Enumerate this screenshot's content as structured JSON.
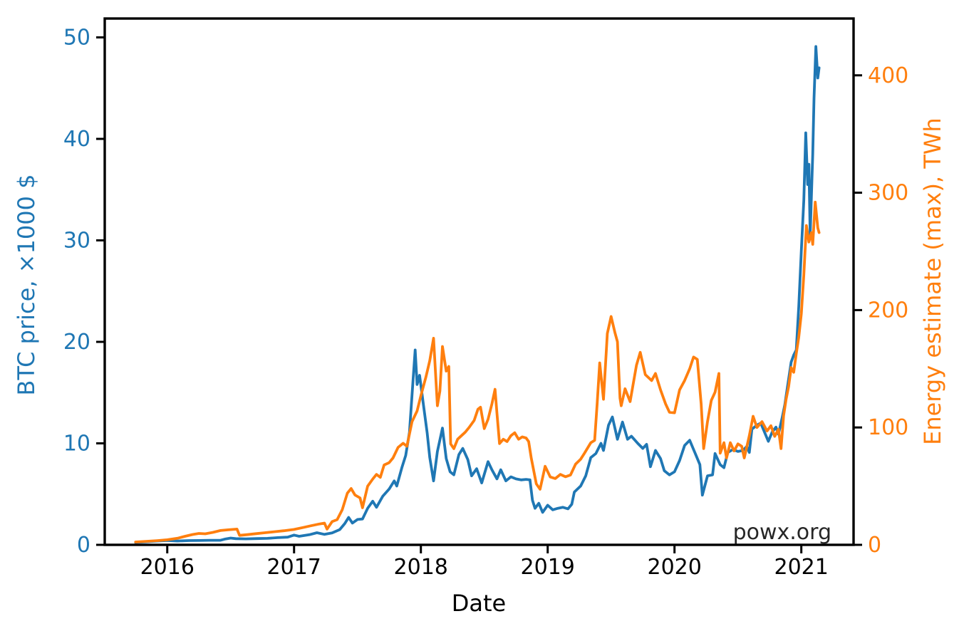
{
  "figure": {
    "watermark": "powx.org"
  },
  "chart_data": {
    "type": "line",
    "title": "",
    "xlabel": "Date",
    "ylabel_left": "BTC price, ×1000 $",
    "ylabel_right": "Energy estimate (max), TWh",
    "grid": false,
    "legend": "none",
    "x_axis": {
      "range": [
        2015.507,
        2021.412
      ],
      "ticks": [
        2016,
        2017,
        2018,
        2019,
        2020,
        2021
      ]
    },
    "y_axis_left": {
      "range": [
        0,
        51.86
      ],
      "ticks": [
        0,
        10,
        20,
        30,
        40,
        50
      ],
      "color": "#1f77b4"
    },
    "y_axis_right": {
      "range": [
        0,
        448.4
      ],
      "ticks": [
        0,
        100,
        200,
        300,
        400
      ],
      "color": "#ff7f0e"
    },
    "series": [
      {
        "name": "BTC price",
        "axis": "left",
        "color": "#1f77b4",
        "units": "×1000 $",
        "points": [
          [
            2015.75,
            0.24
          ],
          [
            2015.83,
            0.3
          ],
          [
            2015.92,
            0.38
          ],
          [
            2016.0,
            0.43
          ],
          [
            2016.08,
            0.38
          ],
          [
            2016.17,
            0.42
          ],
          [
            2016.25,
            0.43
          ],
          [
            2016.33,
            0.45
          ],
          [
            2016.42,
            0.45
          ],
          [
            2016.46,
            0.58
          ],
          [
            2016.5,
            0.67
          ],
          [
            2016.54,
            0.61
          ],
          [
            2016.62,
            0.59
          ],
          [
            2016.71,
            0.62
          ],
          [
            2016.79,
            0.64
          ],
          [
            2016.87,
            0.71
          ],
          [
            2016.95,
            0.76
          ],
          [
            2017.0,
            0.96
          ],
          [
            2017.04,
            0.84
          ],
          [
            2017.12,
            1.0
          ],
          [
            2017.18,
            1.19
          ],
          [
            2017.24,
            1.03
          ],
          [
            2017.3,
            1.18
          ],
          [
            2017.36,
            1.5
          ],
          [
            2017.4,
            2.1
          ],
          [
            2017.43,
            2.7
          ],
          [
            2017.46,
            2.15
          ],
          [
            2017.5,
            2.5
          ],
          [
            2017.54,
            2.55
          ],
          [
            2017.58,
            3.6
          ],
          [
            2017.62,
            4.3
          ],
          [
            2017.65,
            3.7
          ],
          [
            2017.7,
            4.8
          ],
          [
            2017.75,
            5.5
          ],
          [
            2017.79,
            6.3
          ],
          [
            2017.81,
            5.8
          ],
          [
            2017.85,
            7.6
          ],
          [
            2017.88,
            8.8
          ],
          [
            2017.91,
            11.1
          ],
          [
            2017.94,
            16.5
          ],
          [
            2017.955,
            19.2
          ],
          [
            2017.97,
            15.8
          ],
          [
            2017.99,
            16.7
          ],
          [
            2018.02,
            13.8
          ],
          [
            2018.05,
            11.0
          ],
          [
            2018.07,
            8.6
          ],
          [
            2018.1,
            6.3
          ],
          [
            2018.13,
            9.2
          ],
          [
            2018.17,
            11.5
          ],
          [
            2018.2,
            8.5
          ],
          [
            2018.23,
            7.2
          ],
          [
            2018.26,
            6.9
          ],
          [
            2018.3,
            8.9
          ],
          [
            2018.33,
            9.5
          ],
          [
            2018.37,
            8.4
          ],
          [
            2018.4,
            6.8
          ],
          [
            2018.44,
            7.5
          ],
          [
            2018.48,
            6.1
          ],
          [
            2018.53,
            8.2
          ],
          [
            2018.56,
            7.4
          ],
          [
            2018.6,
            6.5
          ],
          [
            2018.63,
            7.4
          ],
          [
            2018.67,
            6.3
          ],
          [
            2018.71,
            6.7
          ],
          [
            2018.75,
            6.5
          ],
          [
            2018.79,
            6.4
          ],
          [
            2018.83,
            6.45
          ],
          [
            2018.86,
            6.4
          ],
          [
            2018.88,
            4.4
          ],
          [
            2018.9,
            3.6
          ],
          [
            2018.93,
            4.1
          ],
          [
            2018.96,
            3.2
          ],
          [
            2019.0,
            3.9
          ],
          [
            2019.04,
            3.45
          ],
          [
            2019.08,
            3.6
          ],
          [
            2019.12,
            3.7
          ],
          [
            2019.16,
            3.55
          ],
          [
            2019.19,
            4.0
          ],
          [
            2019.21,
            5.2
          ],
          [
            2019.26,
            5.8
          ],
          [
            2019.3,
            6.8
          ],
          [
            2019.34,
            8.6
          ],
          [
            2019.38,
            9.0
          ],
          [
            2019.42,
            10.0
          ],
          [
            2019.44,
            9.3
          ],
          [
            2019.48,
            11.8
          ],
          [
            2019.51,
            12.6
          ],
          [
            2019.55,
            10.4
          ],
          [
            2019.59,
            12.1
          ],
          [
            2019.63,
            10.4
          ],
          [
            2019.66,
            10.7
          ],
          [
            2019.71,
            10.0
          ],
          [
            2019.75,
            9.5
          ],
          [
            2019.78,
            9.9
          ],
          [
            2019.81,
            7.7
          ],
          [
            2019.85,
            9.3
          ],
          [
            2019.89,
            8.5
          ],
          [
            2019.92,
            7.3
          ],
          [
            2019.96,
            6.9
          ],
          [
            2020.0,
            7.2
          ],
          [
            2020.04,
            8.3
          ],
          [
            2020.08,
            9.8
          ],
          [
            2020.12,
            10.3
          ],
          [
            2020.16,
            9.1
          ],
          [
            2020.2,
            7.9
          ],
          [
            2020.22,
            4.9
          ],
          [
            2020.26,
            6.8
          ],
          [
            2020.3,
            6.9
          ],
          [
            2020.32,
            9.0
          ],
          [
            2020.36,
            7.9
          ],
          [
            2020.39,
            7.6
          ],
          [
            2020.42,
            9.1
          ],
          [
            2020.46,
            9.4
          ],
          [
            2020.5,
            9.2
          ],
          [
            2020.54,
            9.3
          ],
          [
            2020.57,
            9.7
          ],
          [
            2020.59,
            9.1
          ],
          [
            2020.61,
            11.4
          ],
          [
            2020.65,
            11.8
          ],
          [
            2020.68,
            12.0
          ],
          [
            2020.74,
            10.2
          ],
          [
            2020.77,
            11.1
          ],
          [
            2020.8,
            11.6
          ],
          [
            2020.82,
            10.9
          ],
          [
            2020.85,
            12.6
          ],
          [
            2020.87,
            13.8
          ],
          [
            2020.89,
            15.5
          ],
          [
            2020.92,
            18.0
          ],
          [
            2020.94,
            18.7
          ],
          [
            2020.96,
            19.2
          ],
          [
            2020.98,
            23.5
          ],
          [
            2021.0,
            29.0
          ],
          [
            2021.02,
            34.0
          ],
          [
            2021.035,
            40.6
          ],
          [
            2021.05,
            35.5
          ],
          [
            2021.06,
            37.5
          ],
          [
            2021.07,
            30.5
          ],
          [
            2021.09,
            38.5
          ],
          [
            2021.1,
            44.0
          ],
          [
            2021.115,
            49.1
          ],
          [
            2021.13,
            46.0
          ],
          [
            2021.14,
            47.0
          ]
        ]
      },
      {
        "name": "Energy estimate (max)",
        "axis": "right",
        "color": "#ff7f0e",
        "units": "TWh",
        "points": [
          [
            2015.75,
            2.4
          ],
          [
            2015.83,
            3.0
          ],
          [
            2015.92,
            3.6
          ],
          [
            2016.0,
            4.3
          ],
          [
            2016.08,
            5.6
          ],
          [
            2016.14,
            7.3
          ],
          [
            2016.2,
            8.8
          ],
          [
            2016.25,
            9.7
          ],
          [
            2016.3,
            9.4
          ],
          [
            2016.36,
            10.6
          ],
          [
            2016.42,
            12.2
          ],
          [
            2016.48,
            12.8
          ],
          [
            2016.55,
            13.4
          ],
          [
            2016.57,
            8.1
          ],
          [
            2016.63,
            8.7
          ],
          [
            2016.7,
            9.5
          ],
          [
            2016.77,
            10.3
          ],
          [
            2016.85,
            11.2
          ],
          [
            2016.92,
            12.0
          ],
          [
            2017.0,
            13.1
          ],
          [
            2017.08,
            15.0
          ],
          [
            2017.13,
            16.2
          ],
          [
            2017.2,
            17.8
          ],
          [
            2017.24,
            18.5
          ],
          [
            2017.26,
            13.4
          ],
          [
            2017.3,
            19.8
          ],
          [
            2017.34,
            21.5
          ],
          [
            2017.38,
            30.0
          ],
          [
            2017.42,
            44.0
          ],
          [
            2017.45,
            48.0
          ],
          [
            2017.48,
            42.5
          ],
          [
            2017.52,
            40.0
          ],
          [
            2017.54,
            31.6
          ],
          [
            2017.58,
            50.0
          ],
          [
            2017.62,
            56.0
          ],
          [
            2017.65,
            60.0
          ],
          [
            2017.68,
            57.5
          ],
          [
            2017.71,
            68.0
          ],
          [
            2017.75,
            70.0
          ],
          [
            2017.78,
            74.0
          ],
          [
            2017.82,
            83.0
          ],
          [
            2017.86,
            86.5
          ],
          [
            2017.89,
            84.0
          ],
          [
            2017.93,
            105.0
          ],
          [
            2017.97,
            114.0
          ],
          [
            2018.0,
            127.0
          ],
          [
            2018.04,
            143.0
          ],
          [
            2018.07,
            157.0
          ],
          [
            2018.1,
            176.0
          ],
          [
            2018.13,
            118.5
          ],
          [
            2018.15,
            131.0
          ],
          [
            2018.17,
            169.0
          ],
          [
            2018.2,
            148.0
          ],
          [
            2018.22,
            152.0
          ],
          [
            2018.235,
            86.0
          ],
          [
            2018.26,
            82.0
          ],
          [
            2018.29,
            90.0
          ],
          [
            2018.32,
            93.0
          ],
          [
            2018.35,
            96.0
          ],
          [
            2018.38,
            100.0
          ],
          [
            2018.42,
            106.0
          ],
          [
            2018.45,
            115.5
          ],
          [
            2018.47,
            117.3
          ],
          [
            2018.5,
            99.0
          ],
          [
            2018.53,
            107.0
          ],
          [
            2018.56,
            120.0
          ],
          [
            2018.585,
            132.5
          ],
          [
            2018.6,
            112.0
          ],
          [
            2018.62,
            86.3
          ],
          [
            2018.65,
            90.0
          ],
          [
            2018.68,
            88.0
          ],
          [
            2018.71,
            93.0
          ],
          [
            2018.74,
            95.5
          ],
          [
            2018.77,
            90.0
          ],
          [
            2018.8,
            92.0
          ],
          [
            2018.83,
            91.0
          ],
          [
            2018.85,
            88.0
          ],
          [
            2018.87,
            74.0
          ],
          [
            2018.91,
            52.0
          ],
          [
            2018.94,
            47.4
          ],
          [
            2018.98,
            66.9
          ],
          [
            2019.02,
            57.8
          ],
          [
            2019.06,
            56.5
          ],
          [
            2019.1,
            60.0
          ],
          [
            2019.14,
            58.0
          ],
          [
            2019.18,
            59.5
          ],
          [
            2019.22,
            68.8
          ],
          [
            2019.26,
            73.0
          ],
          [
            2019.29,
            78.0
          ],
          [
            2019.34,
            87.0
          ],
          [
            2019.37,
            89.0
          ],
          [
            2019.39,
            120.0
          ],
          [
            2019.41,
            155.0
          ],
          [
            2019.44,
            124.0
          ],
          [
            2019.47,
            180.0
          ],
          [
            2019.5,
            194.5
          ],
          [
            2019.53,
            181.0
          ],
          [
            2019.55,
            173.0
          ],
          [
            2019.57,
            125.0
          ],
          [
            2019.58,
            118.5
          ],
          [
            2019.61,
            133.0
          ],
          [
            2019.65,
            122.0
          ],
          [
            2019.7,
            153.0
          ],
          [
            2019.73,
            164.0
          ],
          [
            2019.77,
            145.0
          ],
          [
            2019.82,
            140.0
          ],
          [
            2019.85,
            146.0
          ],
          [
            2019.89,
            132.0
          ],
          [
            2019.93,
            120.0
          ],
          [
            2019.96,
            113.0
          ],
          [
            2020.0,
            112.5
          ],
          [
            2020.04,
            132.0
          ],
          [
            2020.08,
            140.0
          ],
          [
            2020.12,
            150.0
          ],
          [
            2020.15,
            160.0
          ],
          [
            2020.18,
            158.0
          ],
          [
            2020.21,
            120.0
          ],
          [
            2020.23,
            82.0
          ],
          [
            2020.26,
            105.0
          ],
          [
            2020.29,
            123.0
          ],
          [
            2020.32,
            130.0
          ],
          [
            2020.35,
            146.0
          ],
          [
            2020.36,
            78.0
          ],
          [
            2020.39,
            87.0
          ],
          [
            2020.41,
            74.0
          ],
          [
            2020.44,
            87.0
          ],
          [
            2020.47,
            80.0
          ],
          [
            2020.5,
            86.0
          ],
          [
            2020.53,
            84.0
          ],
          [
            2020.55,
            74.0
          ],
          [
            2020.59,
            93.0
          ],
          [
            2020.62,
            109.5
          ],
          [
            2020.65,
            100.0
          ],
          [
            2020.69,
            105.0
          ],
          [
            2020.73,
            97.0
          ],
          [
            2020.76,
            101.5
          ],
          [
            2020.79,
            92.4
          ],
          [
            2020.82,
            98.5
          ],
          [
            2020.84,
            82.0
          ],
          [
            2020.86,
            110.0
          ],
          [
            2020.88,
            124.0
          ],
          [
            2020.9,
            135.0
          ],
          [
            2020.92,
            151.0
          ],
          [
            2020.94,
            147.0
          ],
          [
            2020.96,
            163.0
          ],
          [
            2020.98,
            177.0
          ],
          [
            2021.0,
            197.0
          ],
          [
            2021.02,
            230.0
          ],
          [
            2021.04,
            272.0
          ],
          [
            2021.06,
            258.0
          ],
          [
            2021.08,
            266.0
          ],
          [
            2021.09,
            256.0
          ],
          [
            2021.11,
            292.0
          ],
          [
            2021.13,
            270.0
          ],
          [
            2021.14,
            266.0
          ]
        ]
      }
    ]
  }
}
